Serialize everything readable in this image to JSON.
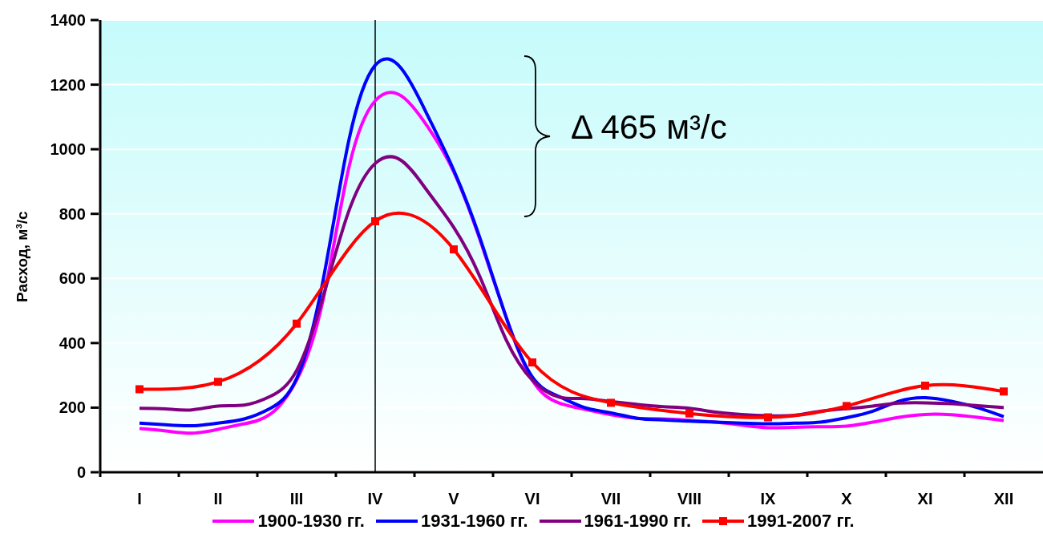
{
  "chart_data": {
    "type": "line",
    "ylabel": "Расход, м³/с",
    "annotations": [
      "Δ 465 м³/с"
    ],
    "categories": [
      "I",
      null,
      null,
      "II",
      null,
      null,
      "III",
      null,
      null,
      "IV",
      null,
      null,
      "V",
      null,
      null,
      "VI",
      null,
      null,
      "VII",
      null,
      null,
      "VIII",
      null,
      null,
      "IX",
      null,
      null,
      "X",
      null,
      null,
      "XI",
      null,
      null,
      "XII"
    ],
    "ylim": [
      0,
      1400
    ],
    "yticks": [
      0,
      200,
      400,
      600,
      800,
      1000,
      1200,
      1400
    ],
    "grid": "y",
    "legend": "bottom",
    "ref_lines": [
      {
        "axis": "x",
        "value": "IV",
        "color": "#000000"
      }
    ],
    "series": [
      {
        "name": "1900-1930 гг.",
        "color": "#ff00ff",
        "marker": "none",
        "values": [
          135,
          128,
          121,
          133,
          150,
          180,
          285,
          530,
          945,
          1150,
          1165,
          1070,
          930,
          720,
          480,
          285,
          215,
          195,
          178,
          167,
          165,
          161,
          155,
          146,
          138,
          139,
          141,
          143,
          155,
          170,
          179,
          178,
          170,
          160
        ]
      },
      {
        "name": "1931-1960 гг.",
        "color": "#0000ff",
        "marker": "none",
        "values": [
          152,
          147,
          144,
          152,
          165,
          198,
          290,
          590,
          1030,
          1260,
          1250,
          1105,
          935,
          725,
          480,
          295,
          235,
          200,
          184,
          167,
          162,
          158,
          155,
          152,
          150,
          152,
          155,
          169,
          189,
          220,
          231,
          220,
          200,
          172
        ]
      },
      {
        "name": "1961-1990 гг.",
        "color": "#800080",
        "marker": "none",
        "values": [
          198,
          196,
          193,
          205,
          208,
          235,
          315,
          540,
          810,
          956,
          965,
          870,
          758,
          605,
          410,
          285,
          233,
          228,
          219,
          210,
          203,
          198,
          186,
          179,
          175,
          176,
          189,
          197,
          205,
          214,
          215,
          212,
          206,
          200
        ]
      },
      {
        "name": "1991-2007 гг.",
        "color": "#ff0000",
        "marker": "square",
        "values": [
          257,
          null,
          null,
          280,
          null,
          null,
          460,
          null,
          null,
          777,
          null,
          null,
          690,
          null,
          null,
          340,
          null,
          null,
          215,
          null,
          null,
          182,
          null,
          null,
          170,
          null,
          null,
          205,
          null,
          null,
          268,
          null,
          null,
          250
        ]
      }
    ]
  }
}
